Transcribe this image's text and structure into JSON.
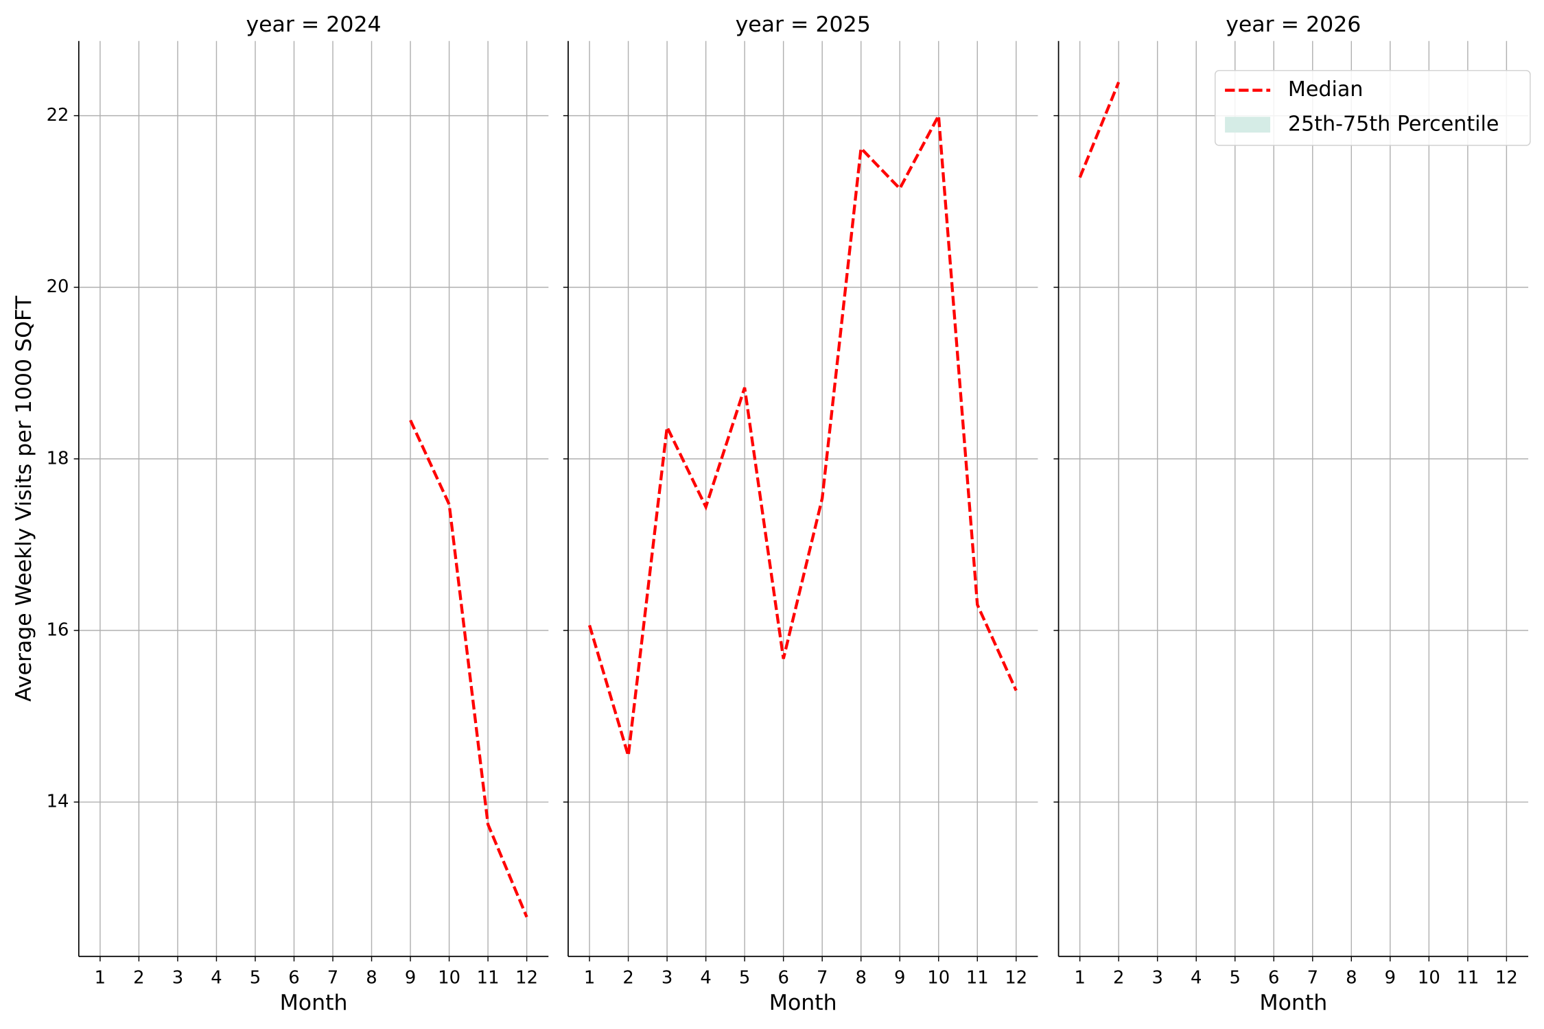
{
  "chart_data": [
    {
      "type": "line",
      "title": "year = 2024",
      "xlabel": "Month",
      "ylabel": "Average Weekly Visits per 1000 SQFT",
      "ytick_labels": true,
      "x": [
        1,
        2,
        3,
        4,
        5,
        6,
        7,
        8,
        9,
        10,
        11,
        12
      ],
      "series": [
        {
          "name": "Median",
          "color": "#ff0000",
          "dashed": true,
          "values": [
            null,
            null,
            null,
            null,
            null,
            null,
            null,
            null,
            18.45,
            17.47,
            13.74,
            12.66
          ]
        }
      ],
      "xlim": [
        0.45,
        12.56
      ],
      "xticks": [
        1,
        2,
        3,
        4,
        5,
        6,
        7,
        8,
        9,
        10,
        11,
        12
      ],
      "ylim": [
        12.2,
        22.87
      ],
      "yticks": [
        14,
        16,
        18,
        20,
        22
      ],
      "grid": true
    },
    {
      "type": "line",
      "title": "year = 2025",
      "xlabel": "Month",
      "ytick_labels": false,
      "x": [
        1,
        2,
        3,
        4,
        5,
        6,
        7,
        8,
        9,
        10,
        11,
        12
      ],
      "series": [
        {
          "name": "Median",
          "color": "#ff0000",
          "dashed": true,
          "values": [
            16.06,
            14.54,
            18.37,
            17.44,
            18.83,
            15.67,
            17.54,
            21.62,
            21.15,
            22.0,
            16.3,
            15.3
          ]
        }
      ],
      "xlim": [
        0.45,
        12.56
      ],
      "xticks": [
        1,
        2,
        3,
        4,
        5,
        6,
        7,
        8,
        9,
        10,
        11,
        12
      ],
      "ylim": [
        12.2,
        22.87
      ],
      "yticks": [
        14,
        16,
        18,
        20,
        22
      ],
      "grid": true
    },
    {
      "type": "line",
      "title": "year = 2026",
      "xlabel": "Month",
      "ytick_labels": false,
      "legend": "upper right",
      "x": [
        1,
        2,
        3,
        4,
        5,
        6,
        7,
        8,
        9,
        10,
        11,
        12
      ],
      "series": [
        {
          "name": "Median",
          "color": "#ff0000",
          "dashed": true,
          "values": [
            21.28,
            22.39,
            null,
            null,
            null,
            null,
            null,
            null,
            null,
            null,
            null,
            null
          ]
        },
        {
          "name": "25th-75th Percentile",
          "color": "#d5ece6",
          "band": true,
          "values": [
            null,
            null,
            null,
            null,
            null,
            null,
            null,
            null,
            null,
            null,
            null,
            null
          ]
        }
      ],
      "xlim": [
        0.45,
        12.56
      ],
      "xticks": [
        1,
        2,
        3,
        4,
        5,
        6,
        7,
        8,
        9,
        10,
        11,
        12
      ],
      "ylim": [
        12.2,
        22.87
      ],
      "yticks": [
        14,
        16,
        18,
        20,
        22
      ],
      "grid": true
    }
  ]
}
